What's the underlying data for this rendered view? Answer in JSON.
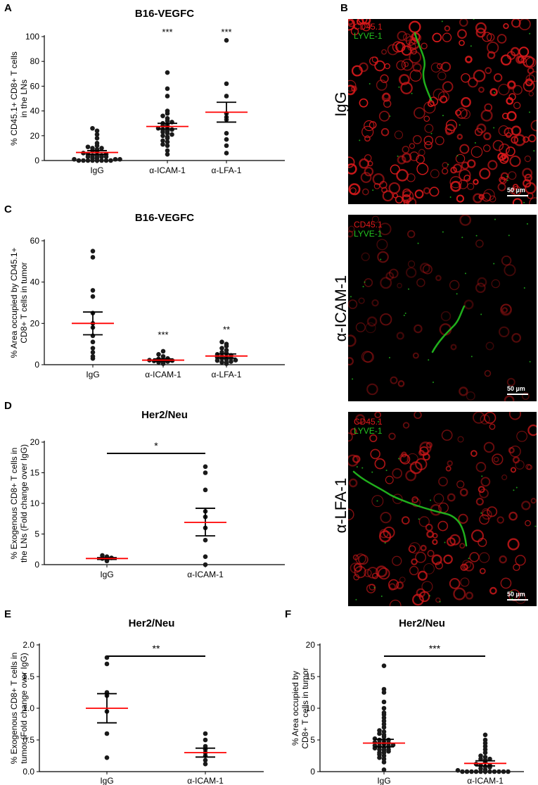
{
  "panel_letters": {
    "a": "A",
    "b": "B",
    "c": "C",
    "d": "D",
    "e": "E",
    "f": "F"
  },
  "colors": {
    "mean_line": "#ff0000",
    "dot": "#1a1a1a",
    "red_channel": "#e0191b",
    "green_channel": "#23c21f"
  },
  "chart_data": [
    {
      "id": "A",
      "type": "scatter",
      "title": "B16-VEGFC",
      "ylabel_lines": [
        "% CD45.1+ CD8+ T cells",
        "in the LNs"
      ],
      "categories": [
        "IgG",
        "α-ICAM-1",
        "α-LFA-1"
      ],
      "ylim": [
        0,
        100
      ],
      "yticks": [
        "0",
        "20",
        "40",
        "60",
        "80",
        "100"
      ],
      "significance": [
        "",
        "***",
        "***"
      ],
      "series": [
        {
          "values": [
            0,
            0,
            0,
            0,
            0,
            0,
            0,
            0,
            1,
            1,
            1,
            2,
            2,
            3,
            3,
            3,
            4,
            4,
            4,
            5,
            5,
            6,
            7,
            8,
            9,
            10,
            10,
            11,
            12,
            14,
            18,
            21,
            24,
            26
          ],
          "mean": 6.5,
          "sem_low": 5.0,
          "sem_high": 8.0
        },
        {
          "values": [
            5,
            8,
            12,
            13,
            15,
            16,
            18,
            19,
            20,
            21,
            22,
            23,
            24,
            25,
            25,
            26,
            27,
            28,
            29,
            30,
            31,
            32,
            34,
            36,
            38,
            40,
            52,
            58,
            71
          ],
          "mean": 27.5,
          "sem_low": 25.5,
          "sem_high": 30.0
        },
        {
          "values": [
            6,
            12,
            17,
            22,
            33,
            35,
            38,
            52,
            62,
            97
          ],
          "mean": 39,
          "sem_low": 31,
          "sem_high": 47
        }
      ]
    },
    {
      "id": "C",
      "type": "scatter",
      "title": "B16-VEGFC",
      "ylabel_lines": [
        "% Area occupied by CD45.1+",
        "CD8+ T cells in tumor"
      ],
      "categories": [
        "IgG",
        "α-ICAM-1",
        "α-LFA-1"
      ],
      "ylim": [
        0,
        60
      ],
      "yticks": [
        "0",
        "20",
        "40",
        "60"
      ],
      "significance": [
        "",
        "***",
        "**"
      ],
      "series": [
        {
          "values": [
            3,
            4,
            6,
            8,
            11,
            14,
            18,
            20,
            25,
            33,
            36,
            52,
            55
          ],
          "mean": 20,
          "sem_low": 14.5,
          "sem_high": 25.5
        },
        {
          "values": [
            0.5,
            1,
            1.2,
            1.5,
            1.8,
            2,
            2.2,
            2.5,
            2.8,
            3,
            4,
            5,
            6.5
          ],
          "mean": 2.2,
          "sem_low": 1.6,
          "sem_high": 2.8
        },
        {
          "values": [
            0.5,
            1,
            1.2,
            1.5,
            2,
            2.2,
            2.5,
            3,
            3.2,
            3.5,
            3.8,
            4,
            4.5,
            5,
            5.5,
            6,
            7,
            8,
            9,
            10,
            11
          ],
          "mean": 4.2,
          "sem_low": 3.2,
          "sem_high": 5.2
        }
      ]
    },
    {
      "id": "D",
      "type": "scatter",
      "title": "Her2/Neu",
      "ylabel_lines": [
        "% Exogenous CD8+ T cells in",
        "the LNs (Fold change over IgG)"
      ],
      "categories": [
        "IgG",
        "α-ICAM-1"
      ],
      "ylim": [
        0,
        20
      ],
      "yticks": [
        "0",
        "5",
        "10",
        "15",
        "20"
      ],
      "significance_bracket": "*",
      "series": [
        {
          "values": [
            0.6,
            0.8,
            1.0,
            1.1,
            1.3,
            1.5
          ],
          "mean": 1.0,
          "sem_low": 0.85,
          "sem_high": 1.15
        },
        {
          "values": [
            0,
            1.3,
            4,
            6,
            7.8,
            8.7,
            12.2,
            15,
            16
          ],
          "mean": 6.9,
          "sem_low": 4.7,
          "sem_high": 9.2
        }
      ]
    },
    {
      "id": "E",
      "type": "scatter",
      "title": "Her2/Neu",
      "ylabel_lines": [
        "% Exogenous CD8+ T cells in",
        "tumor (Fold change over IgG)"
      ],
      "categories": [
        "IgG",
        "α-ICAM-1"
      ],
      "ylim": [
        0,
        2.0
      ],
      "yticks": [
        "0.0",
        "0.5",
        "1.0",
        "1.5",
        "2.0"
      ],
      "significance_bracket": "**",
      "series": [
        {
          "values": [
            0.22,
            0.6,
            0.95,
            1.2,
            1.25,
            1.7,
            1.8
          ],
          "mean": 1.0,
          "sem_low": 0.77,
          "sem_high": 1.23
        },
        {
          "values": [
            0.12,
            0.18,
            0.25,
            0.3,
            0.35,
            0.4,
            0.5,
            0.6
          ],
          "mean": 0.3,
          "sem_low": 0.23,
          "sem_high": 0.37
        }
      ]
    },
    {
      "id": "F",
      "type": "scatter",
      "title": "Her2/Neu",
      "ylabel_lines": [
        "% Area occupied by",
        "CD8+ T cells in tumor"
      ],
      "categories": [
        "IgG",
        "α-ICAM-1"
      ],
      "ylim": [
        0,
        20
      ],
      "yticks": [
        "0",
        "5",
        "10",
        "15",
        "20"
      ],
      "significance_bracket": "***",
      "series": [
        {
          "values": [
            0.3,
            1.5,
            2,
            2.2,
            2.5,
            2.7,
            3,
            3,
            3.2,
            3.4,
            3.5,
            3.5,
            3.7,
            3.8,
            4,
            4,
            4.1,
            4.2,
            4.3,
            4.5,
            4.5,
            4.6,
            4.8,
            5,
            5,
            5.2,
            5.5,
            5.8,
            6,
            6.3,
            6.5,
            7,
            7.5,
            8,
            8.5,
            9,
            9.3,
            10,
            11,
            12.5,
            13,
            16.7
          ],
          "mean": 4.5,
          "sem_low": 3.9,
          "sem_high": 5.1
        },
        {
          "values": [
            0,
            0,
            0,
            0,
            0,
            0,
            0,
            0,
            0,
            0,
            0,
            0.2,
            0.3,
            0.5,
            0.7,
            0.8,
            1,
            1,
            1.2,
            1.5,
            1.8,
            2,
            2,
            2.3,
            2.5,
            3,
            3.5,
            4,
            4.5,
            5,
            5.8
          ],
          "mean": 1.3,
          "sem_low": 0.9,
          "sem_high": 1.7
        }
      ]
    }
  ],
  "micrographs": [
    {
      "id": "igg",
      "side_label": "IgG",
      "channel_1": "CD45.1",
      "channel_2": "LYVE-1",
      "scale": "50 µm"
    },
    {
      "id": "icam",
      "side_label": "α-ICAM-1",
      "channel_1": "CD45.1",
      "channel_2": "LYVE-1",
      "scale": "50 µm"
    },
    {
      "id": "lfa",
      "side_label": "α-LFA-1",
      "channel_1": "CD45.1",
      "channel_2": "LYVE-1",
      "scale": "50 µm"
    }
  ]
}
